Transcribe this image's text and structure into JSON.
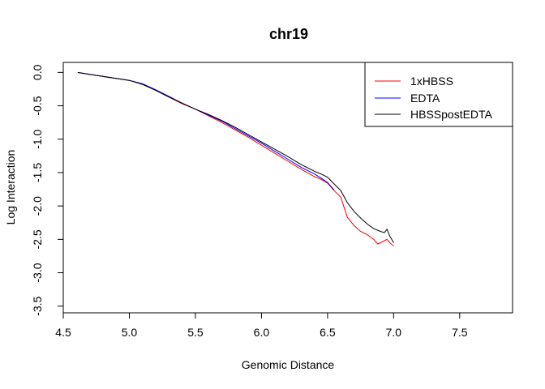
{
  "chart_data": {
    "type": "line",
    "title": "chr19",
    "xlabel": "Genomic Distance",
    "ylabel": "Log Interaction",
    "xlim": [
      4.5,
      7.9
    ],
    "ylim": [
      -3.6,
      0.15
    ],
    "x_ticks": [
      4.5,
      5.0,
      5.5,
      6.0,
      6.5,
      7.0,
      7.5
    ],
    "x_tick_labels": [
      "4.5",
      "5.0",
      "5.5",
      "6.0",
      "6.5",
      "7.0",
      "7.5"
    ],
    "y_ticks": [
      0.0,
      -0.5,
      -1.0,
      -1.5,
      -2.0,
      -2.5,
      -3.0,
      -3.5
    ],
    "y_tick_labels": [
      "0.0",
      "-0.5",
      "-1.0",
      "-1.5",
      "-2.0",
      "-2.5",
      "-3.0",
      "-3.5"
    ],
    "legend_position": "top-right",
    "series": [
      {
        "name": "1xHBSS",
        "color": "#ff0000",
        "x": [
          4.61,
          4.7,
          4.8,
          4.9,
          5.0,
          5.1,
          5.2,
          5.3,
          5.4,
          5.5,
          5.6,
          5.7,
          5.8,
          5.9,
          6.0,
          6.1,
          6.2,
          6.3,
          6.4,
          6.45,
          6.5,
          6.55,
          6.6,
          6.65,
          6.7,
          6.75,
          6.8,
          6.85,
          6.88,
          6.9,
          6.93,
          6.95,
          6.97,
          7.0
        ],
        "values": [
          0.0,
          -0.03,
          -0.06,
          -0.09,
          -0.12,
          -0.18,
          -0.27,
          -0.37,
          -0.47,
          -0.55,
          -0.65,
          -0.75,
          -0.86,
          -0.97,
          -1.09,
          -1.21,
          -1.33,
          -1.45,
          -1.56,
          -1.6,
          -1.66,
          -1.77,
          -1.87,
          -2.17,
          -2.29,
          -2.38,
          -2.43,
          -2.5,
          -2.57,
          -2.55,
          -2.52,
          -2.5,
          -2.55,
          -2.6
        ]
      },
      {
        "name": "EDTA",
        "color": "#0000ff",
        "x": [
          4.61,
          4.7,
          4.8,
          4.9,
          5.0,
          5.1,
          5.2,
          5.3,
          5.4,
          5.5,
          5.6,
          5.7,
          5.8,
          5.9,
          6.0,
          6.1,
          6.2,
          6.3,
          6.4,
          6.45,
          6.5,
          6.55
        ],
        "values": [
          0.0,
          -0.03,
          -0.06,
          -0.09,
          -0.12,
          -0.17,
          -0.26,
          -0.36,
          -0.46,
          -0.55,
          -0.64,
          -0.73,
          -0.84,
          -0.95,
          -1.06,
          -1.18,
          -1.3,
          -1.42,
          -1.52,
          -1.58,
          -1.65,
          -1.76
        ]
      },
      {
        "name": "HBSSpostEDTA",
        "color": "#000000",
        "x": [
          4.61,
          4.7,
          4.8,
          4.9,
          5.0,
          5.1,
          5.2,
          5.3,
          5.4,
          5.5,
          5.6,
          5.7,
          5.8,
          5.9,
          6.0,
          6.1,
          6.2,
          6.3,
          6.4,
          6.45,
          6.5,
          6.55,
          6.6,
          6.65,
          6.7,
          6.75,
          6.8,
          6.85,
          6.9,
          6.93,
          6.95,
          6.97,
          7.0
        ],
        "values": [
          0.0,
          -0.03,
          -0.06,
          -0.09,
          -0.12,
          -0.18,
          -0.27,
          -0.37,
          -0.46,
          -0.55,
          -0.63,
          -0.72,
          -0.82,
          -0.93,
          -1.04,
          -1.15,
          -1.26,
          -1.38,
          -1.48,
          -1.52,
          -1.57,
          -1.67,
          -1.77,
          -1.95,
          -2.08,
          -2.18,
          -2.27,
          -2.34,
          -2.38,
          -2.4,
          -2.35,
          -2.45,
          -2.55
        ]
      }
    ]
  }
}
